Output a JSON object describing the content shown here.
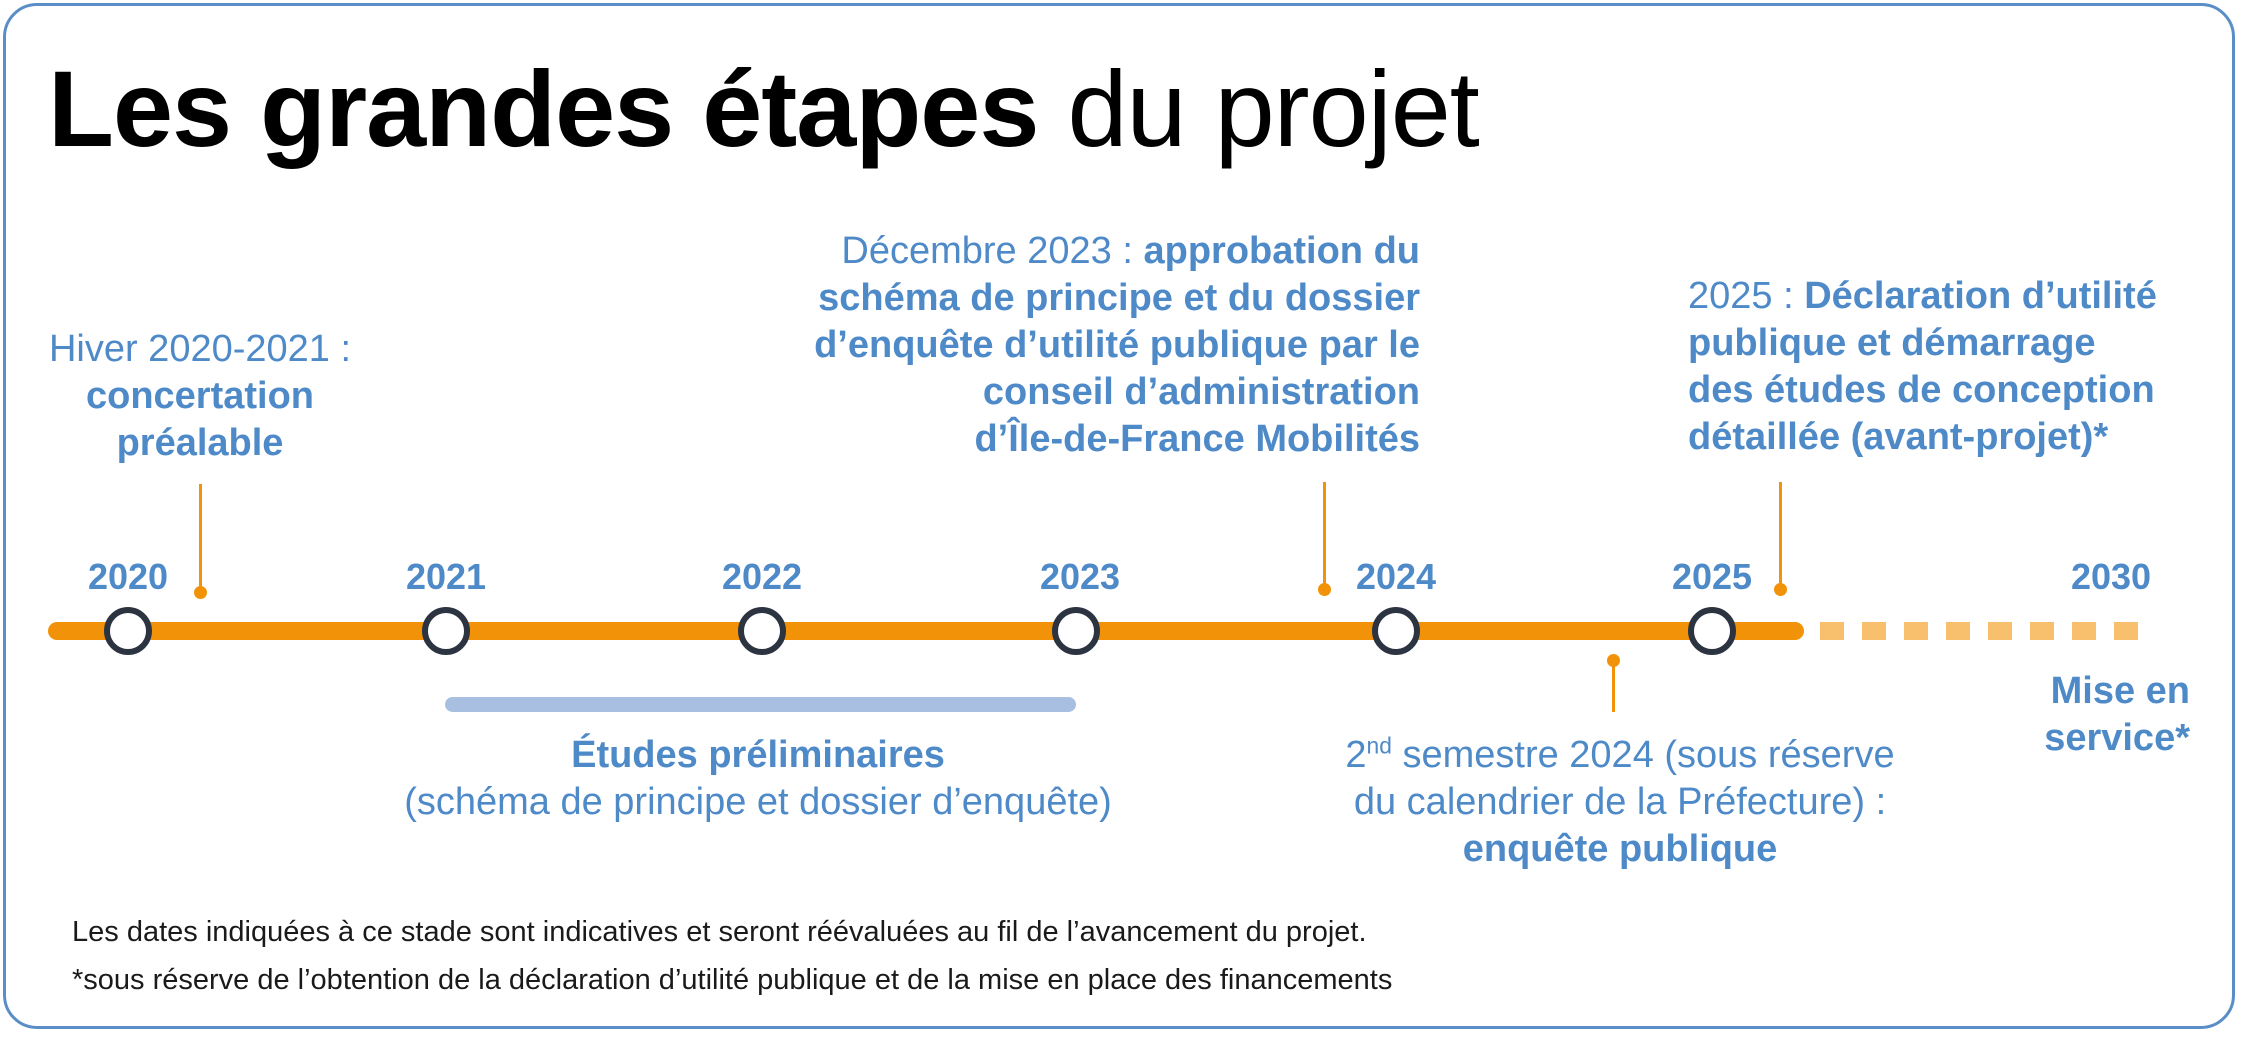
{
  "title": {
    "bold_part": "Les grandes étapes",
    "light_part": "du projet"
  },
  "years": [
    "2020",
    "2021",
    "2022",
    "2023",
    "2024",
    "2025",
    "2030"
  ],
  "milestones": {
    "hiver": {
      "date": "Hiver 2020-2021 :",
      "line1": "concertation",
      "line2": "préalable"
    },
    "dec2023": {
      "date": "Décembre 2023 :",
      "line1": "approbation du",
      "line2": "schéma de principe et du dossier",
      "line3": "d’enquête d’utilité publique par le",
      "line4": "conseil d’administration",
      "line5": "d’Île-de-France Mobilités"
    },
    "y2025": {
      "date": "2025 :",
      "line1": "Déclaration d’utilité",
      "line2": "publique et démarrage",
      "line3": "des études de conception",
      "line4": "détaillée (avant-projet)*"
    },
    "mise": {
      "line1": "Mise en",
      "line2": "service*"
    },
    "enquete": {
      "num": "2",
      "sup": "nd",
      "line1_rest": " semestre 2024 (sous réserve",
      "line2": "du calendrier de la Préfecture) :",
      "line3": "enquête publique"
    }
  },
  "phase": {
    "title": "Études préliminaires",
    "subtitle": "(schéma de principe et dossier d’enquête)"
  },
  "notes": {
    "note1": "Les dates indiquées à ce stade sont indicatives et seront réévaluées au fil de l’avancement du projet.",
    "note2": "*sous réserve de l’obtention de la déclaration d’utilité publique et de la mise en place des financements"
  },
  "colors": {
    "accent_blue": "#4e89c8",
    "timeline_orange": "#f29209",
    "future_orange": "#f8bf6d",
    "phase_bar": "#a9bfe2",
    "node_outline": "#2b3440",
    "frame": "#5a8ec6"
  }
}
